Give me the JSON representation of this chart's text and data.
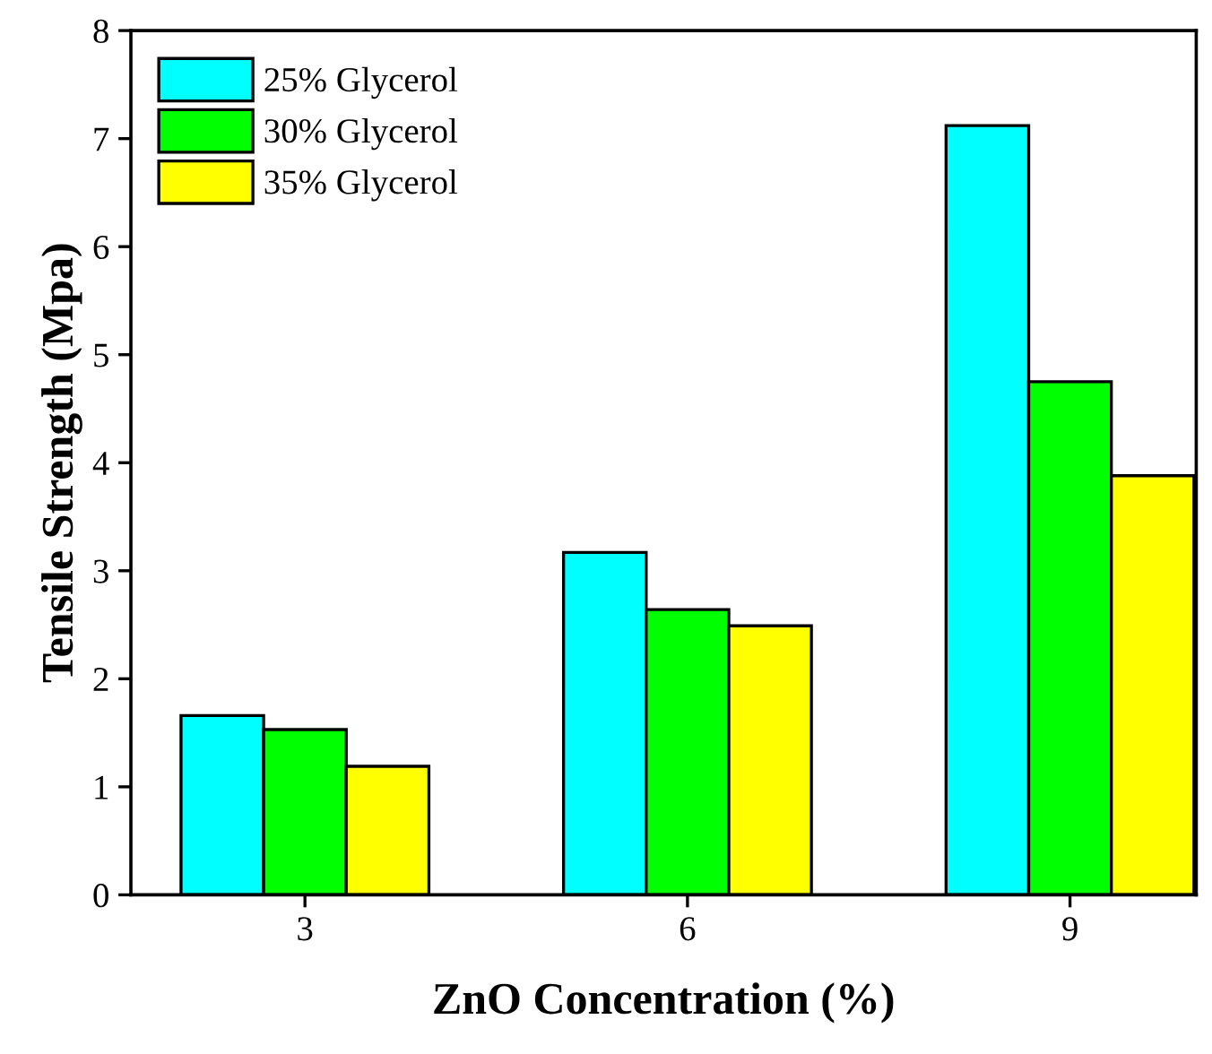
{
  "chart_data": {
    "type": "bar",
    "xlabel": "ZnO Concentration (%)",
    "ylabel": "Tensile Strength (Mpa)",
    "categories": [
      "3",
      "6",
      "9"
    ],
    "series": [
      {
        "name": "25% Glycerol",
        "color": "#00ffff",
        "values": [
          1.66,
          3.17,
          7.12
        ]
      },
      {
        "name": "30% Glycerol",
        "color": "#00ff00",
        "values": [
          1.53,
          2.64,
          4.75
        ]
      },
      {
        "name": "35% Glycerol",
        "color": "#ffff00",
        "values": [
          1.19,
          2.49,
          3.88
        ]
      }
    ],
    "ylim": [
      0,
      8
    ],
    "yticks": [
      0,
      1,
      2,
      3,
      4,
      5,
      6,
      7,
      8
    ],
    "grid": false,
    "legend": "top left"
  }
}
